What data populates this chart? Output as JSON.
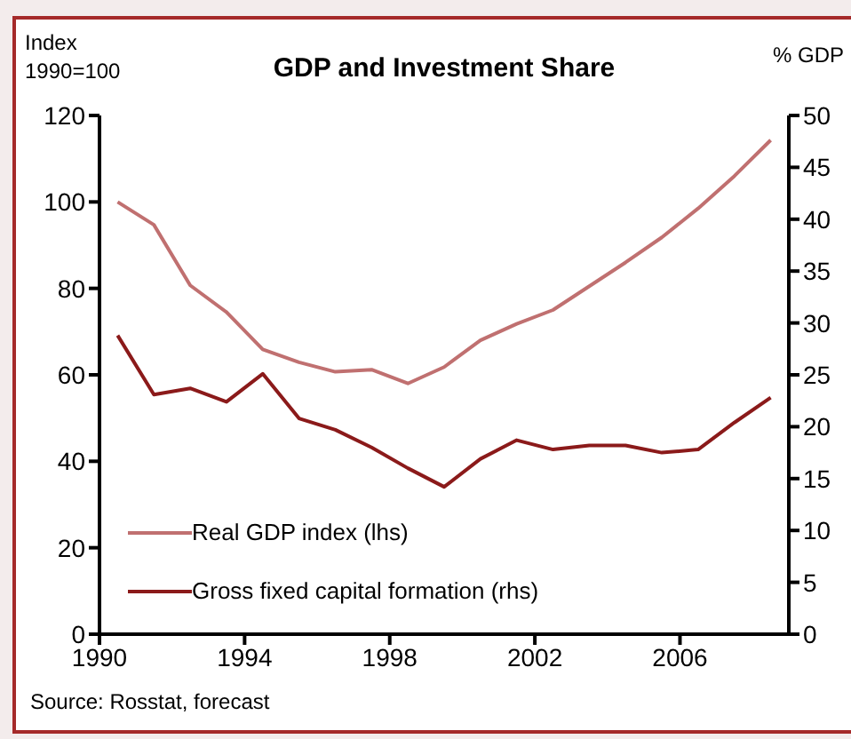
{
  "chart_data": {
    "type": "line",
    "title": "GDP and Investment Share",
    "ylabel": "Index 1990=100",
    "y2label": "% GDP",
    "x": [
      1990.5,
      1991.5,
      1992.5,
      1993.5,
      1994.5,
      1995.5,
      1996.5,
      1997.5,
      1998.5,
      1999.5,
      2000.5,
      2001.5,
      2002.5,
      2003.5,
      2004.5,
      2005.5,
      2006.5,
      2007.5,
      2008.5
    ],
    "series": [
      {
        "name": "Real GDP index (lhs)",
        "color": "#c07070",
        "values": [
          100,
          94.7,
          80.7,
          74.5,
          65.9,
          62.9,
          60.7,
          61.2,
          58,
          61.8,
          68,
          71.8,
          75,
          80.5,
          86,
          91.8,
          98.5,
          106,
          114.3
        ]
      },
      {
        "name": "Gross fixed capital formation (rhs)",
        "color": "#8b1a1a",
        "axis": "y2",
        "values": [
          28.8,
          23.1,
          23.7,
          22.4,
          25.1,
          20.8,
          19.7,
          18,
          16,
          14.2,
          16.9,
          18.7,
          17.8,
          18.2,
          18.2,
          17.5,
          17.8,
          20.4,
          22.8
        ]
      }
    ],
    "xlim": [
      1990,
      2009
    ],
    "xticks": [
      1990,
      1994,
      1998,
      2002,
      2006
    ],
    "ylim": [
      0,
      120
    ],
    "yticks": [
      0,
      20,
      40,
      60,
      80,
      100,
      120
    ],
    "y2lim": [
      0,
      50
    ],
    "y2ticks": [
      0,
      5,
      10,
      15,
      20,
      25,
      30,
      35,
      40,
      45,
      50
    ],
    "legend": "bottom left",
    "grid": false,
    "marker": "none",
    "line_style": "solid",
    "annotations": [
      "Source: Rosstat, forecast"
    ]
  }
}
